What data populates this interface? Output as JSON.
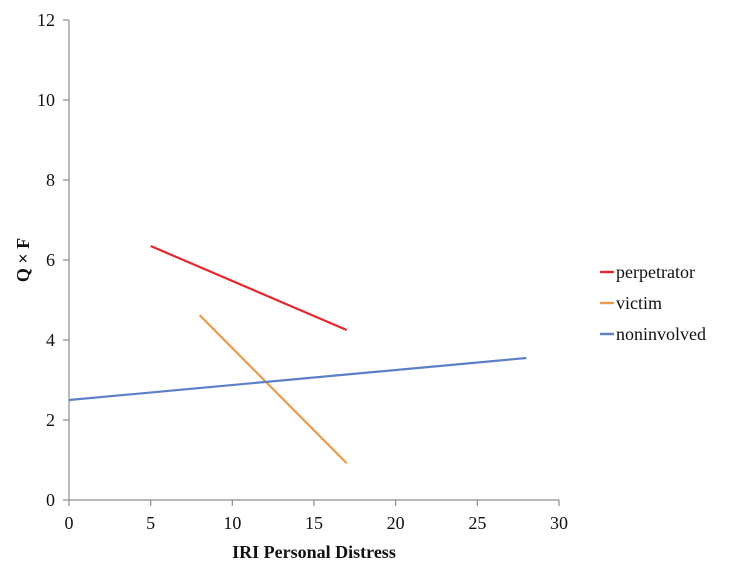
{
  "chart_data": {
    "type": "line",
    "title": "",
    "xlabel": "IRI Personal Distress",
    "ylabel": "Q × F",
    "xlim": [
      0,
      30
    ],
    "ylim": [
      0,
      12
    ],
    "xticks": [
      0,
      5,
      10,
      15,
      20,
      25,
      30
    ],
    "yticks": [
      0,
      2,
      4,
      6,
      8,
      10,
      12
    ],
    "grid": false,
    "legend_position": "right",
    "series": [
      {
        "name": "perpetrator",
        "color": "#e8262a",
        "x": [
          5,
          17
        ],
        "y": [
          6.35,
          4.25
        ]
      },
      {
        "name": "victim",
        "color": "#e99a4d",
        "x": [
          8,
          17
        ],
        "y": [
          4.62,
          0.92
        ]
      },
      {
        "name": "noninvolved",
        "color": "#5b80c7",
        "x": [
          0,
          28
        ],
        "y": [
          2.5,
          3.55
        ]
      }
    ]
  }
}
